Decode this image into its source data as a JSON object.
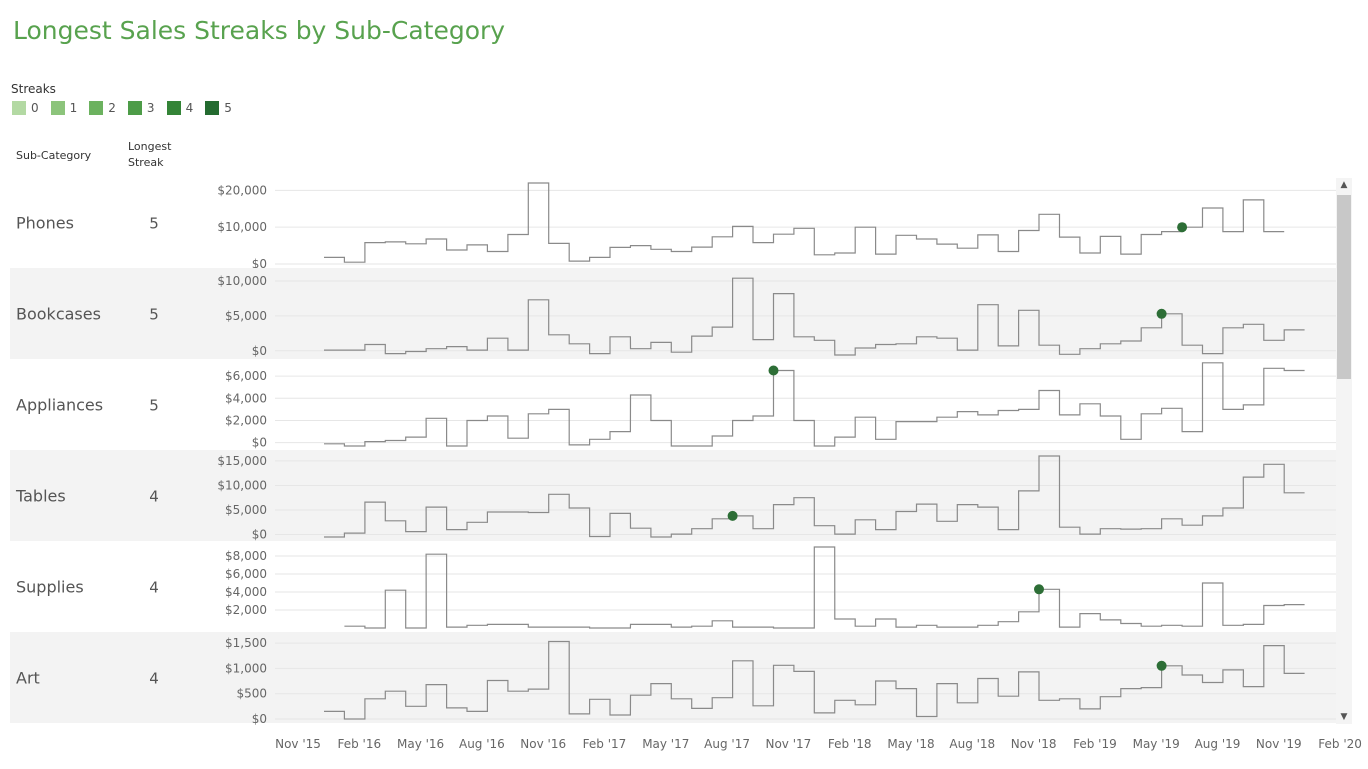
{
  "title": "Longest Sales Streaks by Sub-Category",
  "legend": {
    "title": "Streaks",
    "items": [
      {
        "label": "0",
        "color": "#b3d9a3"
      },
      {
        "label": "1",
        "color": "#8cc47b"
      },
      {
        "label": "2",
        "color": "#6cb25f"
      },
      {
        "label": "3",
        "color": "#4d9c48"
      },
      {
        "label": "4",
        "color": "#348437"
      },
      {
        "label": "5",
        "color": "#246b30"
      }
    ]
  },
  "headers": {
    "sub_category": "Sub-Category",
    "longest": "Longest",
    "streak": "Streak"
  },
  "colors": {
    "line": "#8a8a8a",
    "marker": "#2d6e36",
    "band": "#f3f3f3",
    "grid": "#e6e6e6"
  },
  "chart_data": {
    "type": "line",
    "x": [
      "Jan '16",
      "Feb '16",
      "Mar '16",
      "Apr '16",
      "May '16",
      "Jun '16",
      "Jul '16",
      "Aug '16",
      "Sep '16",
      "Oct '16",
      "Nov '16",
      "Dec '16",
      "Jan '17",
      "Feb '17",
      "Mar '17",
      "Apr '17",
      "May '17",
      "Jun '17",
      "Jul '17",
      "Aug '17",
      "Sep '17",
      "Oct '17",
      "Nov '17",
      "Dec '17",
      "Jan '18",
      "Feb '18",
      "Mar '18",
      "Apr '18",
      "May '18",
      "Jun '18",
      "Jul '18",
      "Aug '18",
      "Sep '18",
      "Oct '18",
      "Nov '18",
      "Dec '18",
      "Jan '19",
      "Feb '19",
      "Mar '19",
      "Apr '19",
      "May '19",
      "Jun '19",
      "Jul '19",
      "Aug '19",
      "Sep '19",
      "Oct '19",
      "Nov '19",
      "Dec '19"
    ],
    "x_ticks": [
      "Nov '15",
      "Feb '16",
      "May '16",
      "Aug '16",
      "Nov '16",
      "Feb '17",
      "May '17",
      "Aug '17",
      "Nov '17",
      "Feb '18",
      "May '18",
      "Aug '18",
      "Nov '18",
      "Feb '19",
      "May '19",
      "Aug '19",
      "Nov '19",
      "Feb '20"
    ],
    "series": [
      {
        "name": "Phones",
        "longest_streak": "5",
        "ymax": 22000,
        "ticks": [
          {
            "v": 0,
            "label": "$0"
          },
          {
            "v": 10000,
            "label": "$10,000"
          },
          {
            "v": 20000,
            "label": "$20,000"
          }
        ],
        "values": [
          1800,
          500,
          5800,
          6000,
          5500,
          6800,
          3800,
          5200,
          3400,
          8000,
          22000,
          5600,
          800,
          1800,
          4500,
          5000,
          4000,
          3400,
          4600,
          7400,
          10200,
          5800,
          8100,
          9700,
          2500,
          3000,
          10000,
          2700,
          7800,
          6800,
          5400,
          4300,
          7900,
          3400,
          9100,
          13500,
          7300,
          3000,
          7500,
          2700,
          8000,
          8800,
          10000,
          15200,
          8800,
          17400,
          8800,
          null
        ],
        "marker_index": 42
      },
      {
        "name": "Bookcases",
        "longest_streak": "5",
        "ymax": 11000,
        "ticks": [
          {
            "v": 0,
            "label": "$0"
          },
          {
            "v": 5000,
            "label": "$5,000"
          },
          {
            "v": 10000,
            "label": "$10,000"
          }
        ],
        "values": [
          100,
          100,
          900,
          -400,
          -100,
          300,
          600,
          100,
          1800,
          100,
          7300,
          2300,
          1000,
          -400,
          2000,
          300,
          1200,
          -200,
          2100,
          3400,
          10400,
          1600,
          8200,
          2000,
          1500,
          -600,
          400,
          900,
          1000,
          2000,
          1800,
          100,
          6600,
          700,
          5800,
          800,
          -500,
          300,
          1000,
          1400,
          3300,
          5300,
          800,
          -400,
          3300,
          3800,
          1500,
          3000
        ],
        "marker_index": 41
      },
      {
        "name": "Appliances",
        "longest_streak": "5",
        "ymax": 7000,
        "ticks": [
          {
            "v": 0,
            "label": "$0"
          },
          {
            "v": 2000,
            "label": "$2,000"
          },
          {
            "v": 4000,
            "label": "$4,000"
          },
          {
            "v": 6000,
            "label": "$6,000"
          }
        ],
        "values": [
          -100,
          -300,
          100,
          200,
          500,
          2200,
          -300,
          2000,
          2400,
          400,
          2600,
          3000,
          -200,
          300,
          1000,
          4300,
          2000,
          -300,
          -300,
          600,
          2000,
          2400,
          6500,
          2000,
          -300,
          500,
          2300,
          300,
          1900,
          1900,
          2300,
          2800,
          2500,
          2900,
          3000,
          4700,
          2500,
          3500,
          2400,
          300,
          2600,
          3100,
          1000,
          7200,
          3000,
          3400,
          6700,
          6500
        ],
        "marker_index": 22
      },
      {
        "name": "Tables",
        "longest_streak": "4",
        "ymax": 16000,
        "ticks": [
          {
            "v": 0,
            "label": "$0"
          },
          {
            "v": 5000,
            "label": "$5,000"
          },
          {
            "v": 10000,
            "label": "$10,000"
          },
          {
            "v": 15000,
            "label": "$15,000"
          }
        ],
        "values": [
          -500,
          300,
          6600,
          2800,
          600,
          5600,
          1000,
          2500,
          4600,
          4600,
          4500,
          8200,
          5400,
          -400,
          4300,
          1300,
          -500,
          100,
          1200,
          3200,
          3800,
          1200,
          6100,
          7500,
          1800,
          100,
          3000,
          1000,
          4700,
          6200,
          2700,
          6100,
          5600,
          1000,
          8900,
          16000,
          1500,
          100,
          1200,
          1100,
          1200,
          3200,
          1900,
          3800,
          5400,
          11700,
          14300,
          8500
        ],
        "marker_index": 20
      },
      {
        "name": "Supplies",
        "longest_streak": "4",
        "ymax": 9000,
        "ticks": [
          {
            "v": 2000,
            "label": "$2,000"
          },
          {
            "v": 4000,
            "label": "$4,000"
          },
          {
            "v": 6000,
            "label": "$6,000"
          },
          {
            "v": 8000,
            "label": "$8,000"
          }
        ],
        "values": [
          null,
          200,
          0,
          4200,
          0,
          8200,
          100,
          300,
          400,
          400,
          100,
          100,
          100,
          0,
          0,
          400,
          400,
          100,
          200,
          800,
          100,
          100,
          0,
          0,
          9000,
          1000,
          200,
          1000,
          100,
          300,
          100,
          100,
          300,
          700,
          1800,
          4300,
          100,
          1600,
          900,
          500,
          200,
          300,
          200,
          5000,
          300,
          400,
          2500,
          2600
        ],
        "marker_index": 35
      },
      {
        "name": "Art",
        "longest_streak": "4",
        "ymax": 1600,
        "ticks": [
          {
            "v": 0,
            "label": "$0"
          },
          {
            "v": 500,
            "label": "$500"
          },
          {
            "v": 1000,
            "label": "$1,000"
          },
          {
            "v": 1500,
            "label": "$1,500"
          }
        ],
        "values": [
          150,
          0,
          400,
          550,
          250,
          680,
          220,
          150,
          760,
          550,
          590,
          1530,
          100,
          390,
          80,
          470,
          700,
          400,
          210,
          420,
          1150,
          260,
          1060,
          940,
          120,
          370,
          280,
          750,
          600,
          50,
          700,
          320,
          800,
          450,
          930,
          370,
          400,
          200,
          440,
          600,
          620,
          1050,
          870,
          720,
          970,
          640,
          1450,
          900
        ],
        "marker_index": 41
      }
    ]
  }
}
